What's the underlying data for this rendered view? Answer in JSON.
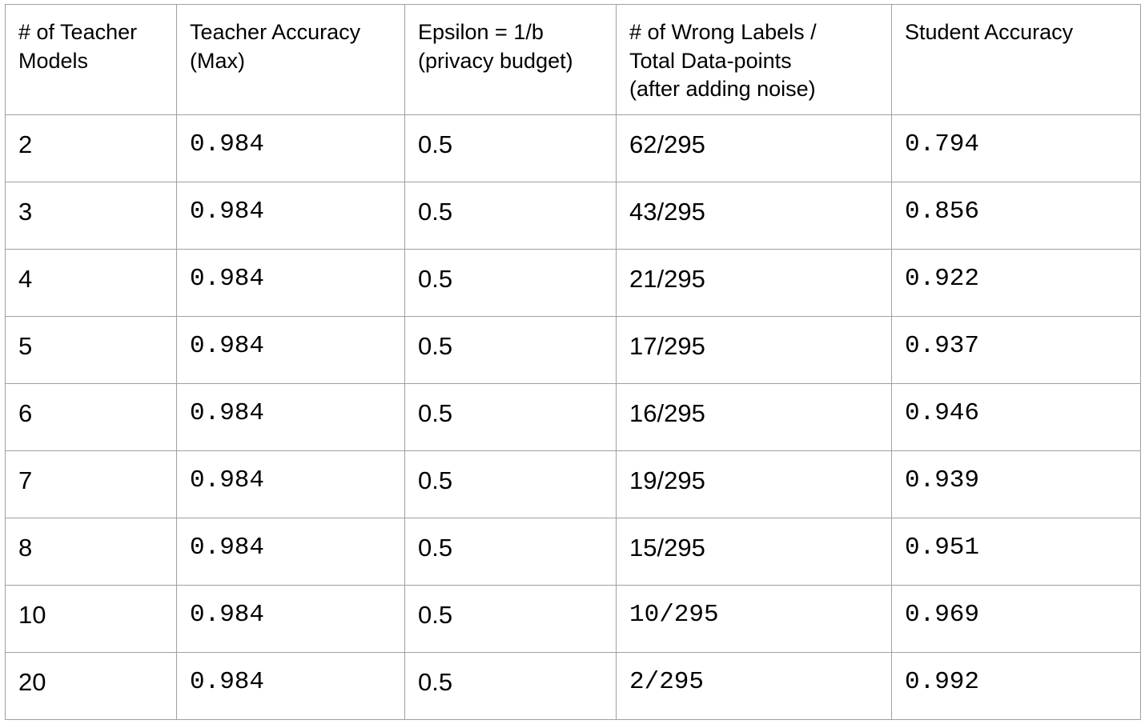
{
  "table": {
    "headers": [
      [
        "# of Teacher",
        "Models"
      ],
      [
        "Teacher Accuracy",
        "(Max)"
      ],
      [
        "Epsilon = 1/b",
        "(privacy budget)"
      ],
      [
        "# of Wrong Labels /",
        "Total Data-points",
        "(after adding noise)"
      ],
      [
        "Student Accuracy"
      ]
    ],
    "rows": [
      {
        "teachers": "2",
        "teacher_acc": "0.984",
        "epsilon": "0.5",
        "wrong": "62/295",
        "student_acc": "0.794"
      },
      {
        "teachers": "3",
        "teacher_acc": "0.984",
        "epsilon": "0.5",
        "wrong": "43/295",
        "student_acc": "0.856"
      },
      {
        "teachers": "4",
        "teacher_acc": "0.984",
        "epsilon": "0.5",
        "wrong": "21/295",
        "student_acc": "0.922"
      },
      {
        "teachers": "5",
        "teacher_acc": "0.984",
        "epsilon": "0.5",
        "wrong": "17/295",
        "student_acc": "0.937"
      },
      {
        "teachers": "6",
        "teacher_acc": "0.984",
        "epsilon": "0.5",
        "wrong": "16/295",
        "student_acc": "0.946"
      },
      {
        "teachers": "7",
        "teacher_acc": "0.984",
        "epsilon": "0.5",
        "wrong": "19/295",
        "student_acc": "0.939"
      },
      {
        "teachers": "8",
        "teacher_acc": "0.984",
        "epsilon": "0.5",
        "wrong": "15/295",
        "student_acc": "0.951"
      },
      {
        "teachers": "10",
        "teacher_acc": "0.984",
        "epsilon": "0.5",
        "wrong": "10/295",
        "student_acc": "0.969"
      },
      {
        "teachers": "20",
        "teacher_acc": "0.984",
        "epsilon": "0.5",
        "wrong": "2/295",
        "student_acc": "0.992"
      }
    ]
  }
}
